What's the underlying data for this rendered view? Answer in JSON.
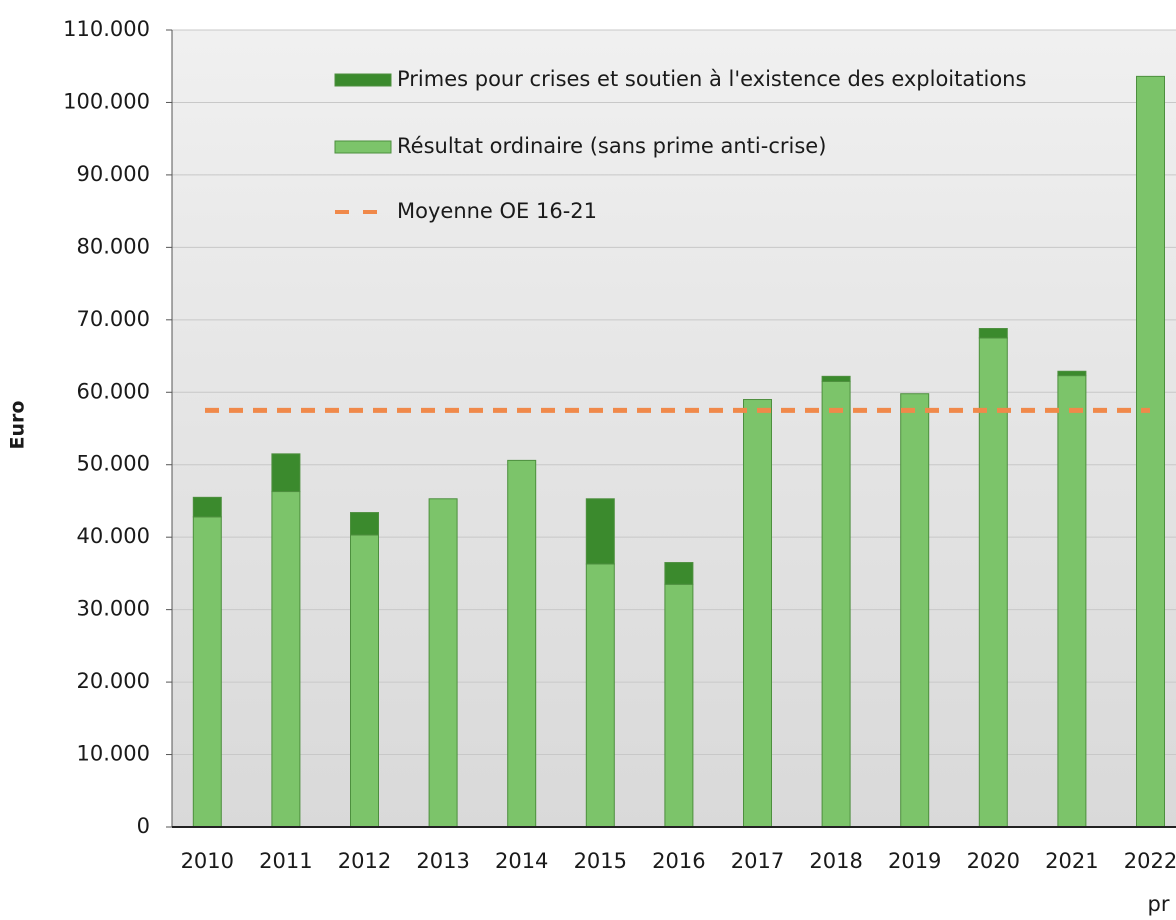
{
  "chart_data": {
    "type": "stacked_bar",
    "y_label": "Euro",
    "categories": [
      "2010",
      "2011",
      "2012",
      "2013",
      "2014",
      "2015",
      "2016",
      "2017",
      "2018",
      "2019",
      "2020",
      "2021",
      "2022"
    ],
    "category_note": "pr",
    "series": [
      {
        "name": "Résultat ordinaire (sans prime anti-crise)",
        "color": "#7cc46a",
        "values": [
          42800,
          46300,
          40300,
          45300,
          50600,
          36300,
          33500,
          59000,
          61500,
          59800,
          67500,
          62300,
          103600
        ]
      },
      {
        "name": "Primes pour crises et soutien à l'existence des exploitations",
        "color": "#3b8a2d",
        "values": [
          2700,
          5200,
          3100,
          0,
          0,
          9000,
          3000,
          0,
          700,
          0,
          1300,
          600,
          0
        ]
      }
    ],
    "average": {
      "name": "Moyenne OE 16-21",
      "value": 57500,
      "color": "#f0894a"
    },
    "ylim": [
      0,
      110000
    ],
    "yticks": [
      0,
      {
        "value": 10000,
        "label": "10.000"
      },
      {
        "value": 20000,
        "label": "20.000"
      },
      {
        "value": 30000,
        "label": "30.000"
      },
      {
        "value": 40000,
        "label": "40.000"
      },
      {
        "value": 50000,
        "label": "50.000"
      },
      {
        "value": 60000,
        "label": "60.000"
      },
      {
        "value": 70000,
        "label": "70.000"
      },
      {
        "value": 80000,
        "label": "80.000"
      },
      {
        "value": 90000,
        "label": "90.000"
      },
      {
        "value": 100000,
        "label": "100.000"
      },
      {
        "value": 110000,
        "label": "110.000"
      }
    ],
    "grid": true
  }
}
